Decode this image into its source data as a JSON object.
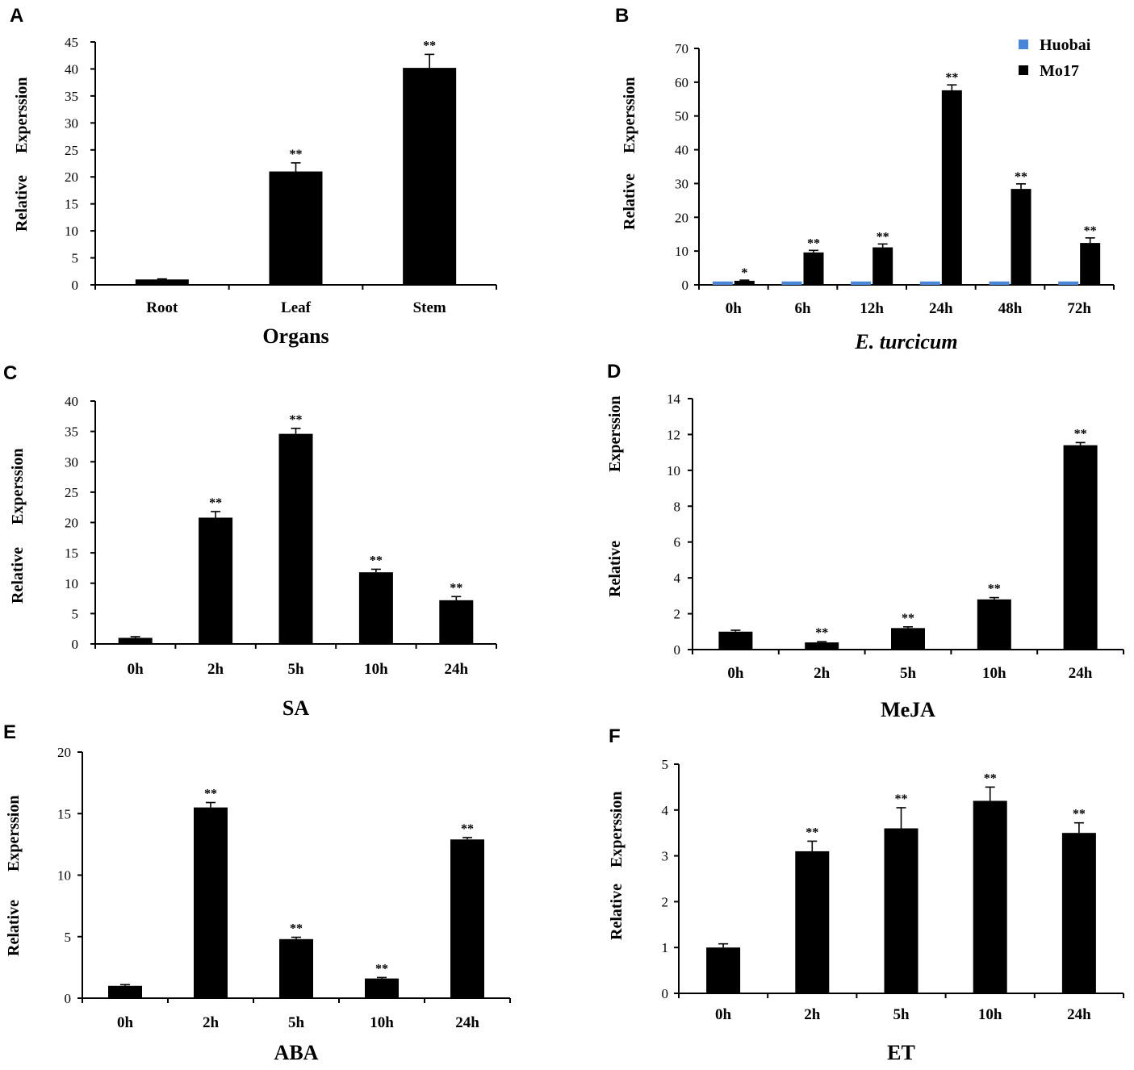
{
  "chart_data": [
    {
      "letter": "A",
      "type": "bar",
      "title": "",
      "xlabel": "Organs",
      "xlabel_italic": false,
      "ylabel_words": [
        "Relative",
        "Experssion"
      ],
      "ylim": [
        0,
        45
      ],
      "yticks": [
        0,
        5,
        10,
        15,
        20,
        25,
        30,
        35,
        40,
        45
      ],
      "categories": [
        "Root",
        "Leaf",
        "Stem"
      ],
      "values": [
        1.0,
        21.0,
        40.2
      ],
      "errors": [
        0.1,
        1.6,
        2.5
      ],
      "significance": [
        "",
        "**",
        "**"
      ]
    },
    {
      "letter": "B",
      "type": "bar",
      "title": "",
      "xlabel": "E. turcicum",
      "xlabel_italic": true,
      "ylabel_words": [
        "Relative",
        "Experssion"
      ],
      "ylim": [
        0,
        70
      ],
      "yticks": [
        0,
        10,
        20,
        30,
        40,
        50,
        60,
        70
      ],
      "categories": [
        "0h",
        "6h",
        "12h",
        "24h",
        "48h",
        "72h"
      ],
      "series": [
        {
          "name": "Huobai",
          "color": "#4a86d8",
          "values": [
            1,
            1,
            1,
            1,
            1,
            1
          ],
          "errors": [
            0,
            0,
            0,
            0,
            0,
            0
          ]
        },
        {
          "name": "Mo17",
          "color": "#000000",
          "values": [
            1.2,
            9.6,
            11.1,
            57.6,
            28.4,
            12.4
          ],
          "errors": [
            0.2,
            0.6,
            1.0,
            1.6,
            1.5,
            1.5
          ]
        }
      ],
      "significance": [
        "*",
        "**",
        "**",
        "**",
        "**",
        "**"
      ],
      "legend_position": "top-right"
    },
    {
      "letter": "C",
      "type": "bar",
      "title": "",
      "xlabel": "SA",
      "xlabel_italic": false,
      "ylabel_words": [
        "Relative",
        "Experssion"
      ],
      "ylim": [
        0,
        40
      ],
      "yticks": [
        0,
        5,
        10,
        15,
        20,
        25,
        30,
        35,
        40
      ],
      "categories": [
        "0h",
        "2h",
        "5h",
        "10h",
        "24h"
      ],
      "values": [
        1.0,
        20.8,
        34.6,
        11.8,
        7.2
      ],
      "errors": [
        0.2,
        1.0,
        0.9,
        0.5,
        0.6
      ],
      "significance": [
        "",
        "**",
        "**",
        "**",
        "**"
      ]
    },
    {
      "letter": "D",
      "type": "bar",
      "title": "",
      "xlabel": "MeJA",
      "xlabel_italic": false,
      "ylabel_words": [
        "Relative",
        "Experssion"
      ],
      "ylim": [
        0,
        14
      ],
      "yticks": [
        0,
        2,
        4,
        6,
        8,
        10,
        12,
        14
      ],
      "categories": [
        "0h",
        "2h",
        "5h",
        "10h",
        "24h"
      ],
      "values": [
        1.0,
        0.4,
        1.2,
        2.8,
        11.4
      ],
      "errors": [
        0.08,
        0.04,
        0.07,
        0.1,
        0.15
      ],
      "significance": [
        "",
        "**",
        "**",
        "**",
        "**"
      ]
    },
    {
      "letter": "E",
      "type": "bar",
      "title": "",
      "xlabel": "ABA",
      "xlabel_italic": false,
      "ylabel_words": [
        "Relative",
        "Experssion"
      ],
      "ylim": [
        0,
        20
      ],
      "yticks": [
        0,
        5,
        10,
        15,
        20
      ],
      "categories": [
        "0h",
        "2h",
        "5h",
        "10h",
        "24h"
      ],
      "values": [
        1.0,
        15.5,
        4.8,
        1.6,
        12.9
      ],
      "errors": [
        0.1,
        0.4,
        0.15,
        0.08,
        0.15
      ],
      "significance": [
        "",
        "**",
        "**",
        "**",
        "**"
      ]
    },
    {
      "letter": "F",
      "type": "bar",
      "title": "",
      "xlabel": "ET",
      "xlabel_italic": false,
      "ylabel_words": [
        "Relative",
        "Experssion"
      ],
      "ylim": [
        0,
        5
      ],
      "yticks": [
        0,
        1,
        2,
        3,
        4,
        5
      ],
      "categories": [
        "0h",
        "2h",
        "5h",
        "10h",
        "24h"
      ],
      "values": [
        1.0,
        3.1,
        3.6,
        4.2,
        3.5
      ],
      "errors": [
        0.08,
        0.22,
        0.45,
        0.3,
        0.22
      ],
      "significance": [
        "",
        "**",
        "**",
        "**",
        "**"
      ]
    }
  ]
}
